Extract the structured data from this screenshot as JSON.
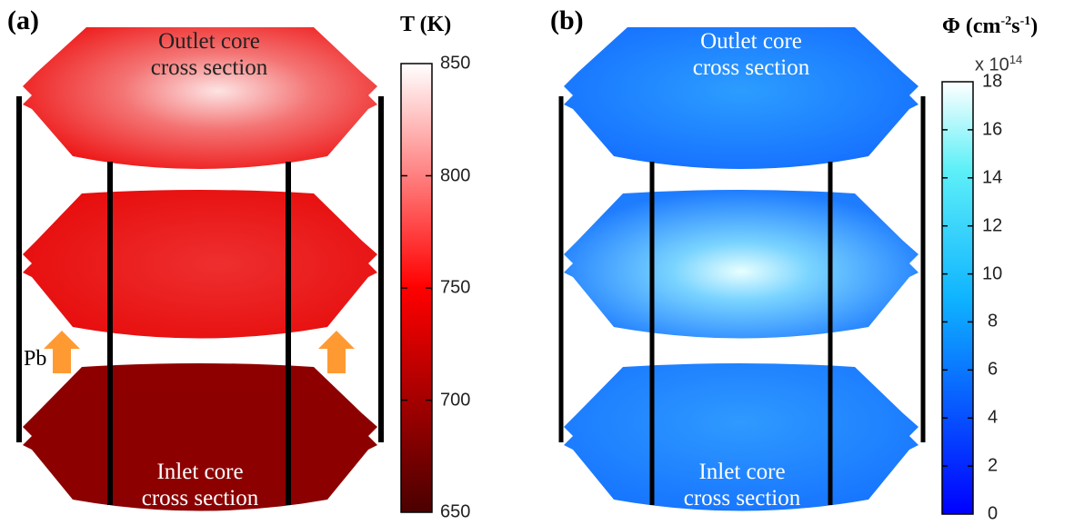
{
  "panel_a": {
    "label": "(a)",
    "colorbar": {
      "title": "T (K)",
      "ticks": [
        "850",
        "800",
        "750",
        "700",
        "650"
      ],
      "min": 650,
      "max": 850,
      "color_low": "#5a0000",
      "color_mid": "#ff0000",
      "color_high": "#ffffff"
    },
    "captions": {
      "outlet_line1": "Outlet core",
      "outlet_line2": "cross section",
      "inlet_line1": "Inlet core",
      "inlet_line2": "cross section"
    },
    "flow_label": "Pb",
    "arrow_color": "#ff9a33"
  },
  "panel_b": {
    "label": "(b)",
    "colorbar": {
      "title_symbol": "Φ",
      "title_unit": "(cm",
      "title_exp1": "-2",
      "title_mid": "s",
      "title_exp2": "-1",
      "title_close": ")",
      "multiplier_base": "x 10",
      "multiplier_exp": "14",
      "ticks": [
        "18",
        "16",
        "14",
        "12",
        "10",
        "8",
        "6",
        "4",
        "2",
        "0"
      ],
      "min": 0,
      "max": 18,
      "color_low": "#0000ff",
      "color_high": "#ffffff"
    },
    "captions": {
      "outlet_line1": "Outlet core",
      "outlet_line2": "cross section",
      "inlet_line1": "Inlet core",
      "inlet_line2": "cross section"
    }
  }
}
